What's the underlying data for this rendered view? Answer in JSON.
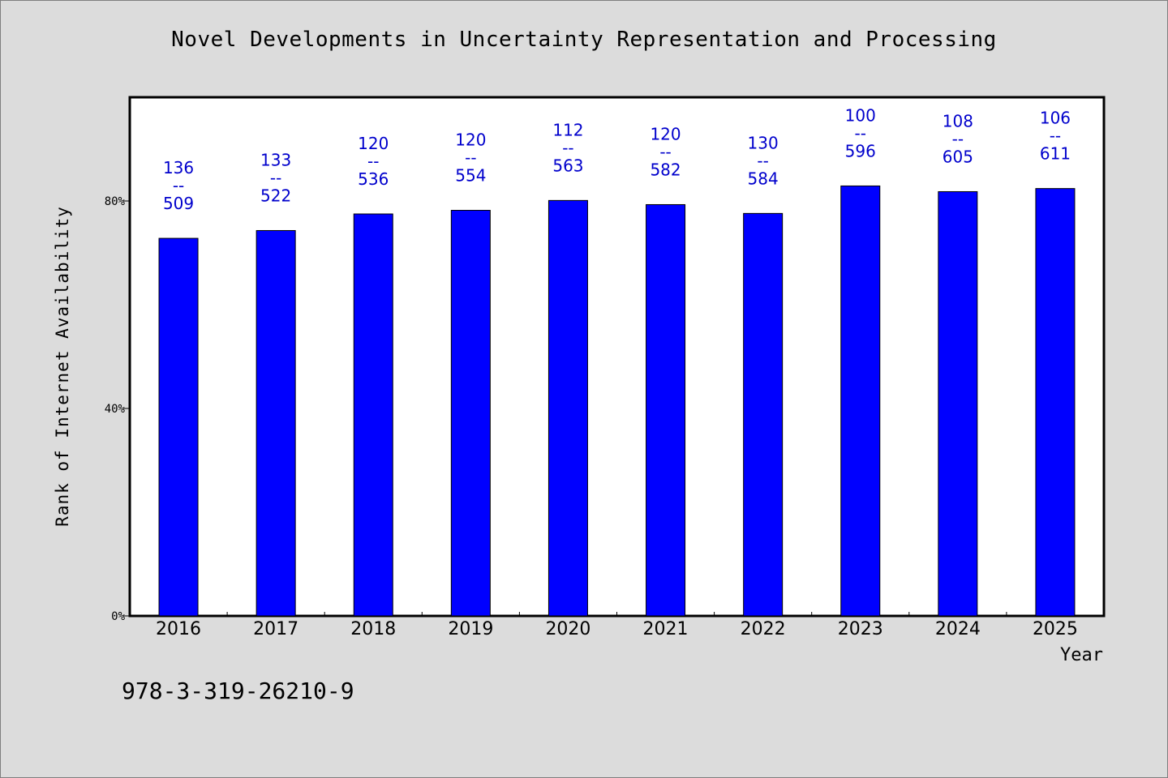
{
  "chart_data": {
    "type": "bar",
    "title": "Novel Developments in Uncertainty Representation and Processing",
    "xlabel": "Year",
    "ylabel": "Rank of Internet Availability",
    "categories": [
      "2016",
      "2017",
      "2018",
      "2019",
      "2020",
      "2021",
      "2022",
      "2023",
      "2024",
      "2025"
    ],
    "series": [
      {
        "values": [
          72.8,
          74.3,
          77.5,
          78.2,
          80.1,
          79.3,
          77.6,
          82.9,
          81.8,
          82.4
        ],
        "labels": [
          "136\n--\n509",
          "133\n--\n522",
          "120\n--\n536",
          "120\n--\n554",
          "112\n--\n563",
          "120\n--\n582",
          "130\n--\n584",
          "100\n--\n596",
          "108\n--\n605",
          "106\n--\n611"
        ]
      }
    ],
    "ylim": [
      0,
      100
    ],
    "yticks": [
      0,
      40,
      80
    ],
    "ytick_labels": [
      "0%",
      "40%",
      "80%"
    ],
    "bar_color": "#0000ff",
    "label_color": "#0000cc",
    "grid": false,
    "legend": "none"
  },
  "footer": {
    "isbn": "978-3-319-26210-9"
  }
}
